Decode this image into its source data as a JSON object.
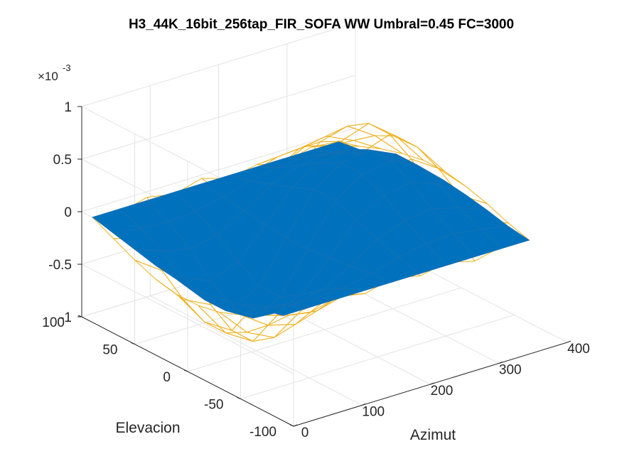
{
  "chart_data": {
    "type": "surface",
    "title": "H3_44K_16bit_256tap_FIR_SOFA WW Umbral=0.45 FC=3000",
    "xlabel": "Azimut",
    "ylabel": "Elevacion",
    "zlabel": "",
    "xlim": [
      0,
      400
    ],
    "ylim": [
      -100,
      100
    ],
    "zlim": [
      -0.001,
      0.001
    ],
    "z_exponent_label": {
      "prefix": "×10",
      "exponent": "-3"
    },
    "x_ticks": [
      {
        "value": 0,
        "label": "0"
      },
      {
        "value": 100,
        "label": "100"
      },
      {
        "value": 200,
        "label": "200"
      },
      {
        "value": 300,
        "label": "300"
      },
      {
        "value": 400,
        "label": "400"
      }
    ],
    "y_ticks": [
      {
        "value": -100,
        "label": "-100"
      },
      {
        "value": -50,
        "label": "-50"
      },
      {
        "value": 0,
        "label": "0"
      },
      {
        "value": 50,
        "label": "50"
      },
      {
        "value": 100,
        "label": "100"
      }
    ],
    "z_ticks": [
      {
        "value": -0.001,
        "label": "-1"
      },
      {
        "value": -0.0005,
        "label": "-0.5"
      },
      {
        "value": 0,
        "label": "0"
      },
      {
        "value": 0.0005,
        "label": "0.5"
      },
      {
        "value": 0.001,
        "label": "1"
      }
    ],
    "grid": true,
    "series": [
      {
        "name": "",
        "style": "surface",
        "color": "#0072BD",
        "x": [
          0,
          40,
          80,
          120,
          160,
          200,
          240,
          280,
          320,
          360
        ],
        "y": [
          -90,
          -70,
          -50,
          -30,
          -10,
          10,
          30,
          50,
          70,
          90
        ],
        "z": [
          [
            0.0,
            0.0,
            0.0,
            0.0,
            0.0,
            0.0,
            0.0,
            0.0,
            0.0,
            0.0
          ],
          [
            -5e-05,
            -8e-05,
            -0.0001,
            -8e-05,
            -2e-05,
            5e-05,
            0.0001,
            0.00012,
            8e-05,
            3e-05
          ],
          [
            -0.0001,
            -0.0002,
            -0.00025,
            -0.0002,
            -5e-05,
            0.00012,
            0.00022,
            0.00025,
            0.00018,
            8e-05
          ],
          [
            -0.00015,
            -0.00035,
            -0.00045,
            -0.00035,
            -8e-05,
            0.0002,
            0.00035,
            0.0004,
            0.0003,
            0.00012
          ],
          [
            -0.00018,
            -0.00045,
            -0.0006,
            -0.00048,
            -0.0001,
            0.00028,
            0.00045,
            0.0005,
            0.00038,
            0.00015
          ],
          [
            -0.00018,
            -0.00045,
            -0.0006,
            -0.00048,
            -0.0001,
            0.00028,
            0.00045,
            0.0005,
            0.00038,
            0.00015
          ],
          [
            -0.00015,
            -0.00035,
            -0.00045,
            -0.00035,
            -8e-05,
            0.0002,
            0.00035,
            0.0004,
            0.0003,
            0.00012
          ],
          [
            -0.0001,
            -0.0002,
            -0.00025,
            -0.0002,
            -5e-05,
            0.00012,
            0.00022,
            0.00025,
            0.00018,
            8e-05
          ],
          [
            -5e-05,
            -8e-05,
            -0.0001,
            -8e-05,
            -2e-05,
            5e-05,
            0.0001,
            0.00012,
            8e-05,
            3e-05
          ],
          [
            0.0,
            0.0,
            0.0,
            0.0,
            0.0,
            0.0,
            0.0,
            0.0,
            0.0,
            0.0
          ]
        ]
      },
      {
        "name": "",
        "style": "mesh",
        "color": "#EDB120",
        "x": [
          0,
          40,
          80,
          120,
          160,
          200,
          240,
          280,
          320,
          360
        ],
        "y": [
          -90,
          -70,
          -50,
          -30,
          -10,
          10,
          30,
          50,
          70,
          90
        ],
        "z": [
          [
            0.0,
            -5e-05,
            2e-05,
            -3e-05,
            4e-05,
            -2e-05,
            3e-05,
            -4e-05,
            2e-05,
            0.0
          ],
          [
            -0.0001,
            -0.00018,
            -0.00022,
            -0.00015,
            0.0,
            0.00012,
            0.0002,
            0.00022,
            0.00015,
            6e-05
          ],
          [
            -0.0002,
            -0.00038,
            -0.00045,
            -0.00032,
            -6e-05,
            0.00022,
            0.00038,
            0.00042,
            0.0003,
            0.00014
          ],
          [
            -0.00028,
            -0.00055,
            -0.00068,
            -0.0005,
            -0.00012,
            0.00032,
            0.00055,
            0.00062,
            0.00045,
            0.0002
          ],
          [
            -0.00032,
            -0.00066,
            -0.00082,
            -0.00062,
            -0.00015,
            0.0004,
            0.00066,
            0.00075,
            0.00055,
            0.00024
          ],
          [
            -0.00032,
            -0.00066,
            -0.00082,
            -0.00062,
            -0.00015,
            0.0004,
            0.00066,
            0.00075,
            0.00055,
            0.00024
          ],
          [
            -0.00028,
            -0.00055,
            -0.00068,
            -0.0005,
            -0.00012,
            0.00032,
            0.00055,
            0.00062,
            0.00045,
            0.0002
          ],
          [
            -0.0002,
            -0.00038,
            -0.00045,
            -0.00032,
            -6e-05,
            0.00022,
            0.00038,
            0.00042,
            0.0003,
            0.00014
          ],
          [
            -0.0001,
            -0.00018,
            -0.00022,
            -0.00015,
            0.0,
            0.00012,
            0.0002,
            0.00022,
            0.00015,
            6e-05
          ],
          [
            0.0,
            -4e-05,
            3e-05,
            -2e-05,
            5e-05,
            -3e-05,
            2e-05,
            -5e-05,
            3e-05,
            0.0
          ]
        ]
      }
    ]
  }
}
